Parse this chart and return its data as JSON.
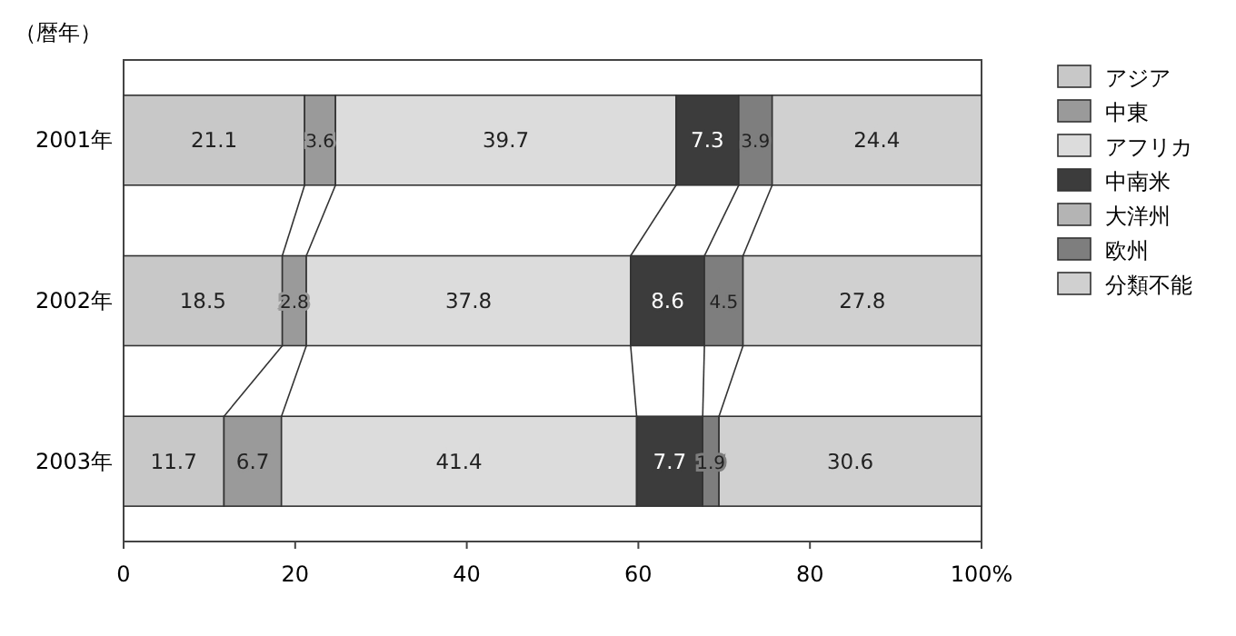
{
  "chart_data": {
    "type": "bar",
    "orientation": "horizontal",
    "stacked": true,
    "ylabel": "（暦年）",
    "categories": [
      "2001年",
      "2002年",
      "2003年"
    ],
    "series": [
      {
        "name": "アジア",
        "color": "#c8c8c8",
        "values": [
          21.1,
          18.5,
          11.7
        ]
      },
      {
        "name": "中東",
        "color": "#9a9a9a",
        "values": [
          3.6,
          2.8,
          6.7
        ]
      },
      {
        "name": "アフリカ",
        "color": "#dcdcdc",
        "values": [
          39.7,
          37.8,
          41.4
        ]
      },
      {
        "name": "中南米",
        "color": "#3c3c3c",
        "values": [
          7.3,
          8.6,
          7.7
        ]
      },
      {
        "name": "大洋州",
        "color": "#b4b4b4",
        "values": [
          null,
          null,
          null
        ]
      },
      {
        "name": "欧州",
        "color": "#7e7e7e",
        "values": [
          3.9,
          4.5,
          1.9
        ]
      },
      {
        "name": "分類不能",
        "color": "#d0d0d0",
        "values": [
          24.4,
          27.8,
          30.6
        ]
      }
    ],
    "xlim": [
      0,
      100
    ],
    "xticks": [
      0,
      20,
      40,
      60,
      80,
      {
        "value": 100,
        "label": "100%"
      }
    ],
    "data_labels": true,
    "legend": "right"
  }
}
